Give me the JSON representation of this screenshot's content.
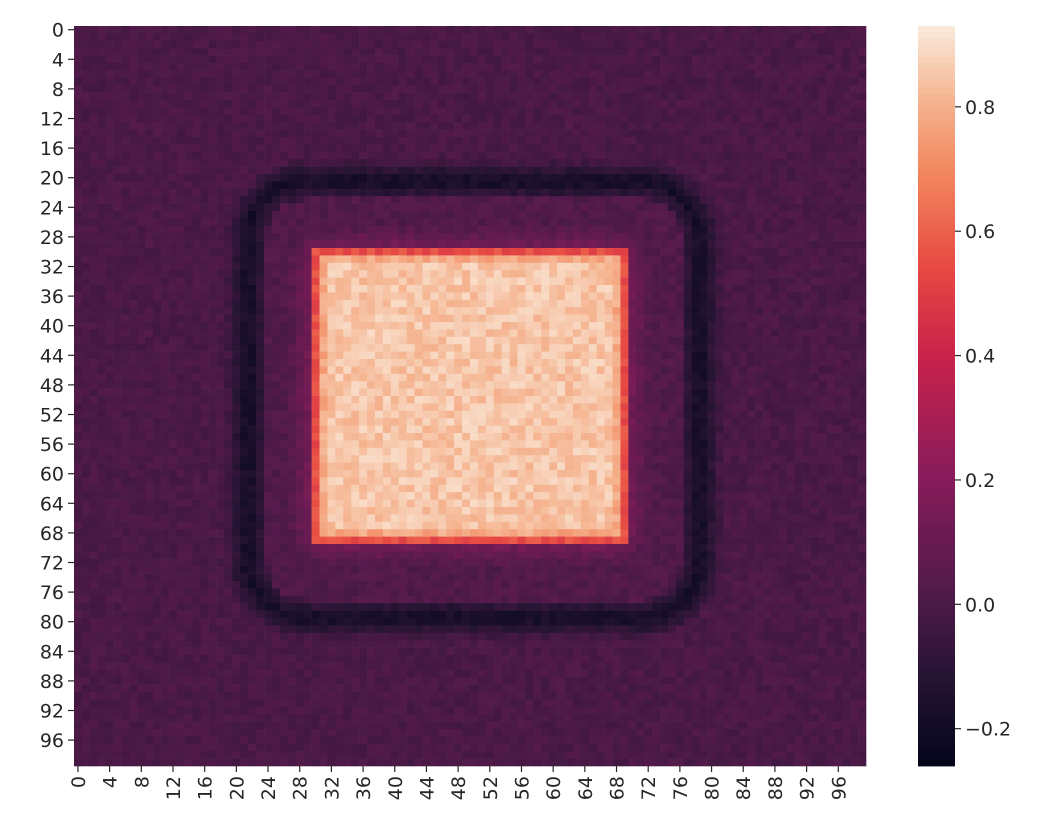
{
  "chart_data": {
    "type": "heatmap",
    "title": "",
    "xlabel": "",
    "ylabel": "",
    "rows": 100,
    "cols": 100,
    "x_tick_labels": [
      "0",
      "4",
      "8",
      "12",
      "16",
      "20",
      "24",
      "28",
      "32",
      "36",
      "40",
      "44",
      "48",
      "52",
      "56",
      "60",
      "64",
      "68",
      "72",
      "76",
      "80",
      "84",
      "88",
      "92",
      "96"
    ],
    "y_tick_labels": [
      "0",
      "4",
      "8",
      "12",
      "16",
      "20",
      "24",
      "28",
      "32",
      "36",
      "40",
      "44",
      "48",
      "52",
      "56",
      "60",
      "64",
      "68",
      "72",
      "76",
      "80",
      "84",
      "88",
      "92",
      "96"
    ],
    "colorbar": {
      "vmin": -0.26,
      "vmax": 0.93,
      "ticks": [
        -0.2,
        0.0,
        0.2,
        0.4,
        0.6,
        0.8
      ],
      "tick_labels": [
        "−0.2",
        "0.0",
        "0.2",
        "0.4",
        "0.6",
        "0.8"
      ],
      "colormap": "rocket"
    },
    "field": {
      "background": 0.0,
      "noise_amplitude": 0.03,
      "bright_square": {
        "rows": [
          30,
          69
        ],
        "cols": [
          30,
          69
        ],
        "inner_value": 0.85,
        "edge_value": 0.55
      },
      "dark_ring": {
        "rows": [
          19,
          81
        ],
        "cols": [
          20,
          80
        ],
        "value": -0.2,
        "corner_radius": 9
      },
      "inner_band": {
        "value": 0.02
      }
    }
  }
}
